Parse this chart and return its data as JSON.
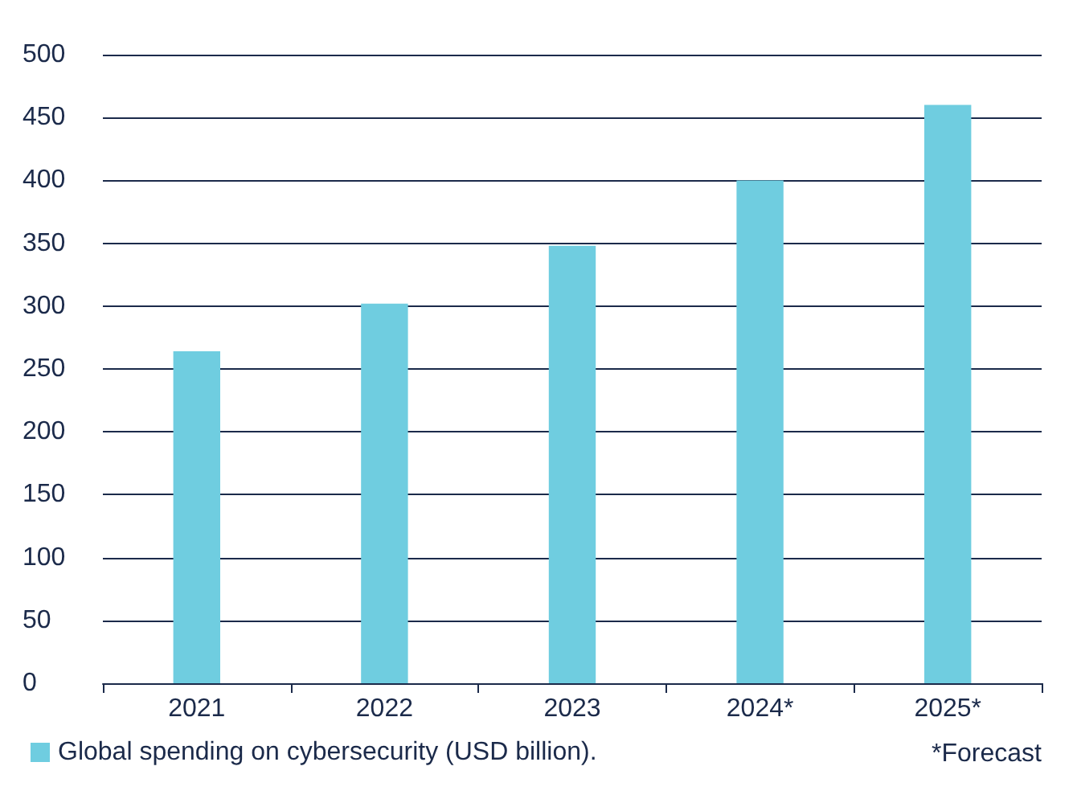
{
  "chart_data": {
    "type": "bar",
    "categories": [
      "2021",
      "2022",
      "2023",
      "2024*",
      "2025*"
    ],
    "series": [
      {
        "name": "Global spending on cybersecurity (USD billion).",
        "color": "#6fcde0",
        "values": [
          264,
          302,
          348,
          400,
          460
        ]
      }
    ],
    "ylim": [
      0,
      500
    ],
    "yticks": [
      0,
      50,
      100,
      150,
      200,
      250,
      300,
      350,
      400,
      450,
      500
    ],
    "grid": "y",
    "legend": "bottom left",
    "annotations": [
      "*Forecast"
    ]
  }
}
